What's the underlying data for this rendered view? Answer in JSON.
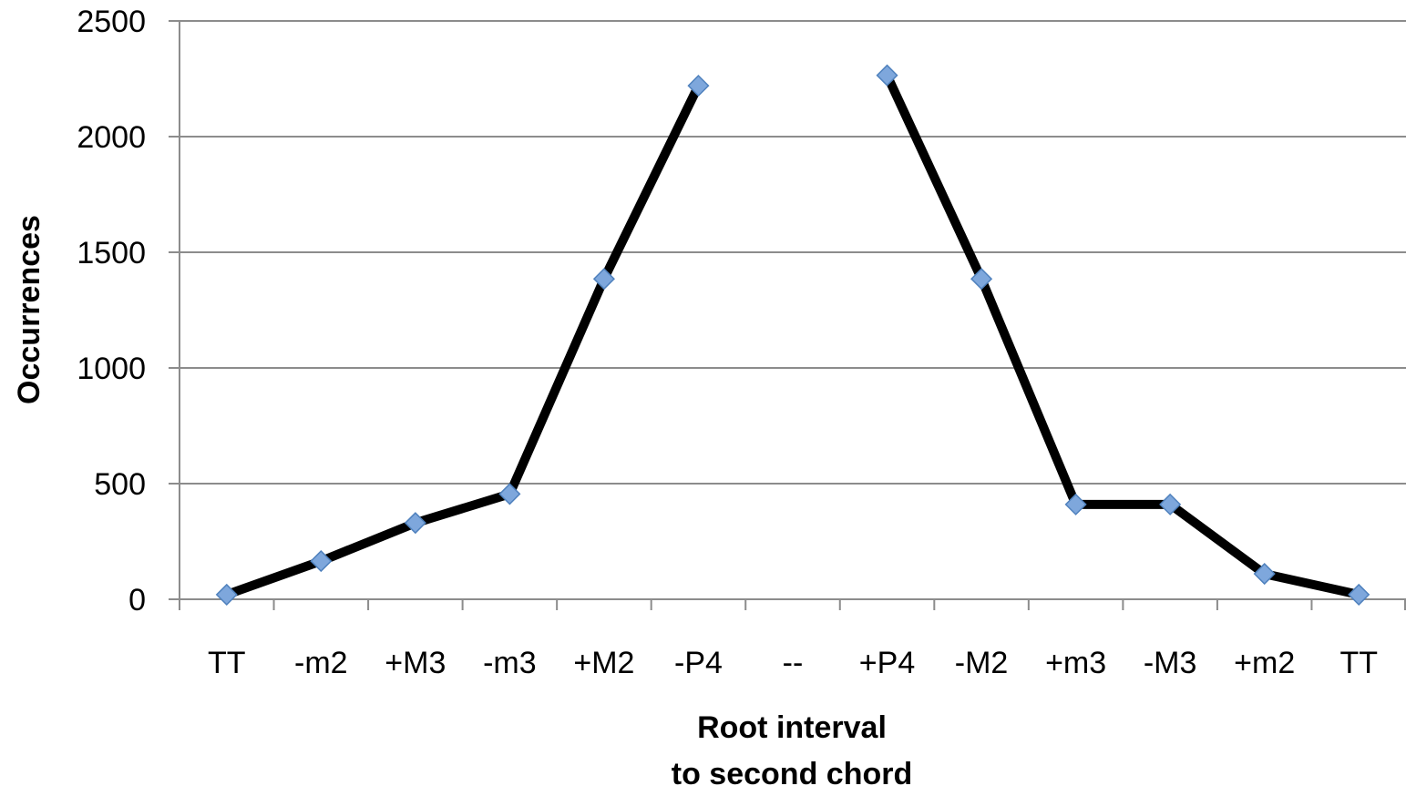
{
  "chart_data": {
    "type": "line",
    "title": "",
    "xlabel_line1": "Root interval",
    "xlabel_line2": "to second chord",
    "ylabel": "Occurrences",
    "categories": [
      "TT",
      "-m2",
      "+M3",
      "-m3",
      "+M2",
      "-P4",
      "--",
      "+P4",
      "-M2",
      "+m3",
      "-M3",
      "+m2",
      "TT"
    ],
    "series": [
      {
        "values": [
          20,
          165,
          330,
          455,
          1385,
          2220,
          null,
          2265,
          1385,
          410,
          410,
          110,
          20
        ]
      }
    ],
    "ylim": [
      0,
      2500
    ],
    "yticks": [
      0,
      500,
      1000,
      1500,
      2000,
      2500
    ],
    "grid": true,
    "legend": "none",
    "colors": {
      "line": "#000000",
      "marker_fill": "#7ea7dc",
      "marker_stroke": "#4f81bd",
      "grid": "#8c8c8c",
      "axis": "#8c8c8c"
    }
  }
}
